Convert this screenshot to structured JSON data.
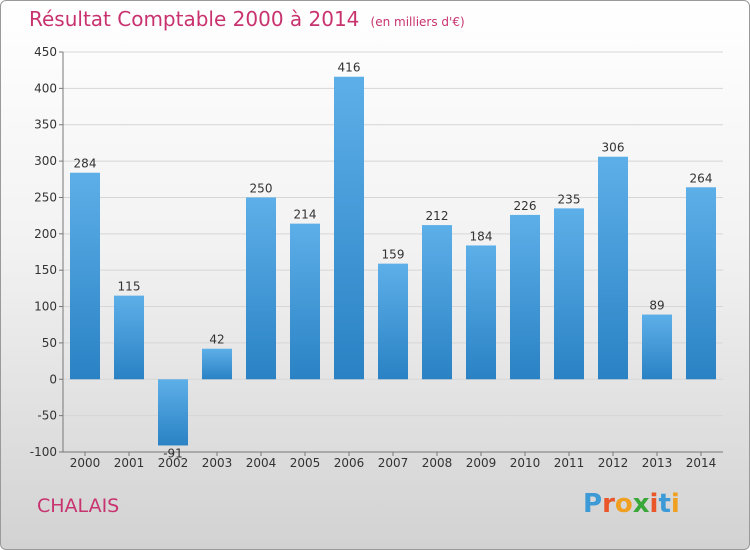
{
  "header": {
    "title": "Résultat Comptable 2000 à 2014",
    "unit": "(en milliers d'€)"
  },
  "footer": {
    "commune": "CHALAIS",
    "logo_text": "Proxiti"
  },
  "colors": {
    "title": "#c8336f",
    "bar_top": "#5dafe8",
    "bar_bottom": "#2a82c4",
    "grid": "#d6d6d6"
  },
  "chart_data": {
    "type": "bar",
    "title": "Résultat Comptable 2000 à 2014",
    "subtitle": "(en milliers d'€)",
    "categories": [
      "2000",
      "2001",
      "2002",
      "2003",
      "2004",
      "2005",
      "2006",
      "2007",
      "2008",
      "2009",
      "2010",
      "2011",
      "2012",
      "2013",
      "2014"
    ],
    "values": [
      284,
      115,
      -91,
      42,
      250,
      214,
      416,
      159,
      212,
      184,
      226,
      235,
      306,
      89,
      264
    ],
    "ylim": [
      -100,
      450
    ],
    "yticks": [
      -100,
      -50,
      0,
      50,
      100,
      150,
      200,
      250,
      300,
      350,
      400,
      450
    ],
    "grid": true,
    "xlabel": "",
    "ylabel": ""
  }
}
